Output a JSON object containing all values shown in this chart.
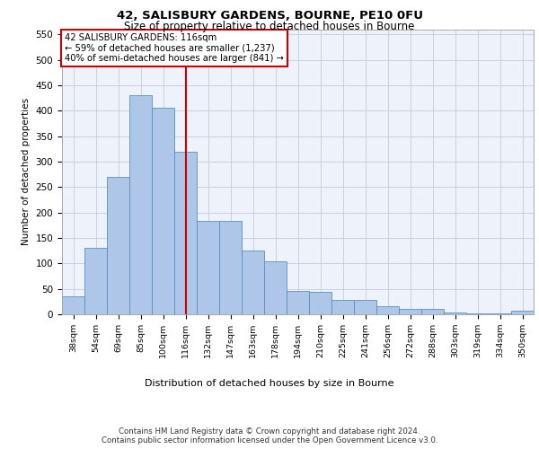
{
  "title1": "42, SALISBURY GARDENS, BOURNE, PE10 0FU",
  "title2": "Size of property relative to detached houses in Bourne",
  "xlabel": "Distribution of detached houses by size in Bourne",
  "ylabel": "Number of detached properties",
  "categories": [
    "38sqm",
    "54sqm",
    "69sqm",
    "85sqm",
    "100sqm",
    "116sqm",
    "132sqm",
    "147sqm",
    "163sqm",
    "178sqm",
    "194sqm",
    "210sqm",
    "225sqm",
    "241sqm",
    "256sqm",
    "272sqm",
    "288sqm",
    "303sqm",
    "319sqm",
    "334sqm",
    "350sqm"
  ],
  "values": [
    35,
    130,
    270,
    430,
    405,
    320,
    183,
    183,
    125,
    104,
    45,
    44,
    28,
    28,
    15,
    10,
    10,
    3,
    2,
    2,
    7
  ],
  "bar_color": "#aec6e8",
  "bar_edge_color": "#5a8fc0",
  "vline_x_index": 5,
  "vline_color": "#cc0000",
  "annotation_text": "42 SALISBURY GARDENS: 116sqm\n← 59% of detached houses are smaller (1,237)\n40% of semi-detached houses are larger (841) →",
  "annotation_box_color": "#ffffff",
  "annotation_box_edge": "#cc0000",
  "ylim": [
    0,
    560
  ],
  "yticks": [
    0,
    50,
    100,
    150,
    200,
    250,
    300,
    350,
    400,
    450,
    500,
    550
  ],
  "grid_color": "#c8d0e0",
  "bg_color": "#eef2fa",
  "footnote": "Contains HM Land Registry data © Crown copyright and database right 2024.\nContains public sector information licensed under the Open Government Licence v3.0."
}
